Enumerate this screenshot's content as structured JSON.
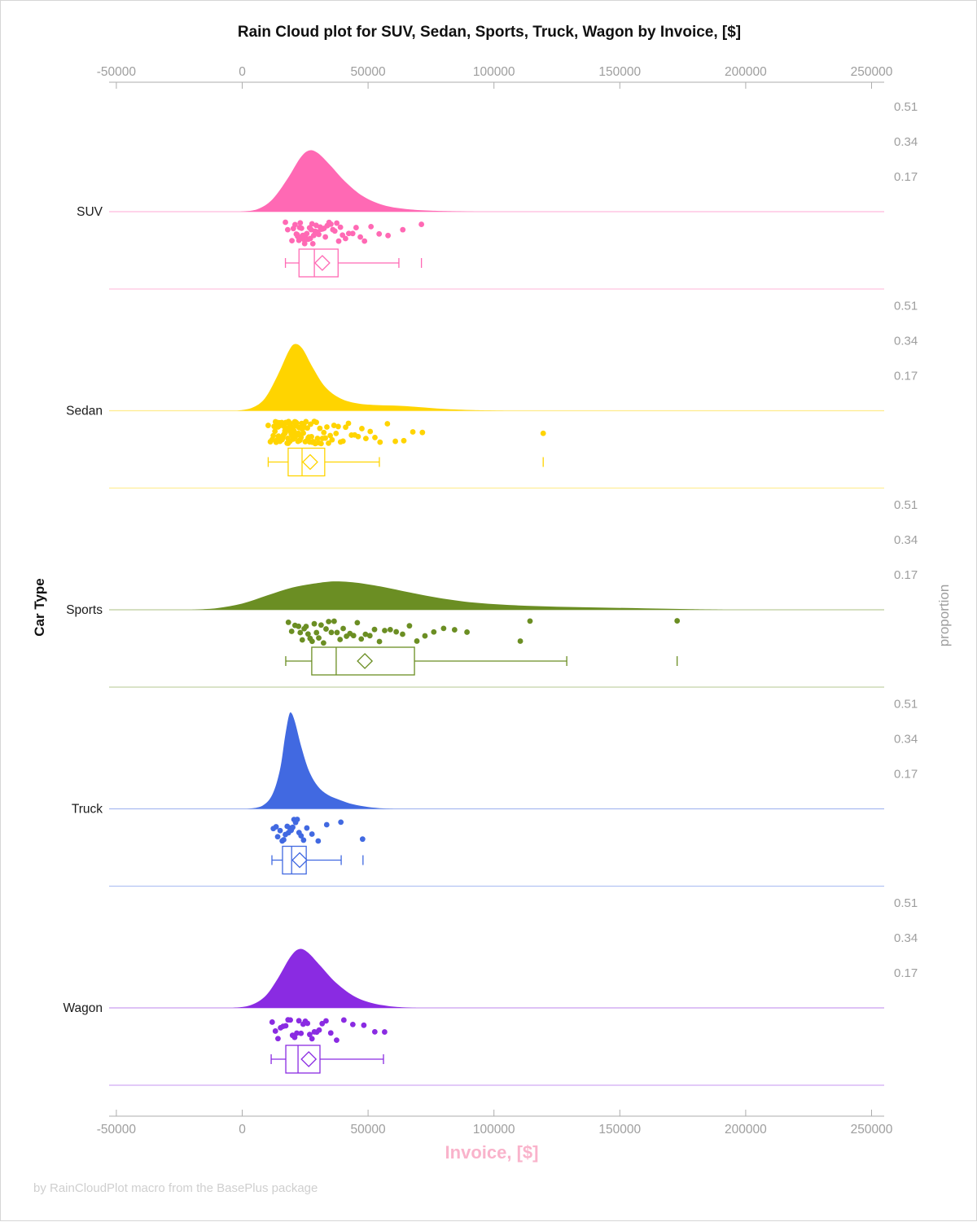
{
  "footer": "by RainCloudPlot macro from the BasePlus package",
  "chart_data": {
    "type": "raincloud (half-violin + jittered strip + box plot)",
    "title": "Rain Cloud plot for SUV, Sedan, Sports, Truck, Wagon by Invoice, [$]",
    "xlabel": "Invoice, [$]",
    "ylabel": "Car Type",
    "y2label": "proportion",
    "xlabel_color": "#f9b3cb",
    "axis_text_color": "#9e9e9e",
    "axis_line_color": "#adadad",
    "xlim": [
      -53000,
      255000
    ],
    "x_ticks": [
      {
        "value": -50000,
        "label": "-50000"
      },
      {
        "value": 0,
        "label": "0"
      },
      {
        "value": 50000,
        "label": "50000"
      },
      {
        "value": 100000,
        "label": "100000"
      },
      {
        "value": 150000,
        "label": "150000"
      },
      {
        "value": 200000,
        "label": "200000"
      },
      {
        "value": 250000,
        "label": "250000"
      }
    ],
    "proportion_ticks": [
      0.51,
      0.34,
      0.17
    ],
    "categories": [
      {
        "label": "SUV",
        "color": "#ff69b4",
        "box": {
          "low": 17165,
          "q1": 22560,
          "median": 28655,
          "q3": 38085,
          "mean": 31820,
          "high": 62235,
          "outliers": [
            71190
          ]
        },
        "density": [
          [
            -1000,
            0
          ],
          [
            6000,
            0.012
          ],
          [
            12000,
            0.06
          ],
          [
            18000,
            0.16
          ],
          [
            23000,
            0.26
          ],
          [
            26500,
            0.297
          ],
          [
            30000,
            0.285
          ],
          [
            35000,
            0.225
          ],
          [
            41000,
            0.145
          ],
          [
            48000,
            0.075
          ],
          [
            56000,
            0.032
          ],
          [
            65000,
            0.013
          ],
          [
            75000,
            0.005
          ],
          [
            88000,
            0.001
          ],
          [
            95000,
            0
          ]
        ],
        "points": [
          17163,
          18075,
          19755,
          20330,
          20990,
          21485,
          21837,
          22000,
          22508,
          22800,
          23061,
          23565,
          23892,
          24052,
          24449,
          24801,
          25216,
          25672,
          25995,
          26322,
          26755,
          27060,
          27409,
          27721,
          28055,
          28416,
          28963,
          29382,
          29875,
          30415,
          30967,
          31343,
          31912,
          32506,
          33037,
          33781,
          34506,
          35227,
          35992,
          36788,
          37560,
          38324,
          39014,
          39837,
          41045,
          42315,
          43892,
          45240,
          46912,
          48577,
          51155,
          54396,
          57925,
          63790,
          71191
        ]
      },
      {
        "label": "Sedan",
        "color": "#ffd400",
        "box": {
          "low": 10320,
          "q1": 18250,
          "median": 23770,
          "q3": 32775,
          "mean": 26990,
          "high": 54480,
          "outliers": [
            119565
          ]
        },
        "density": [
          [
            -2000,
            0
          ],
          [
            4000,
            0.015
          ],
          [
            9000,
            0.06
          ],
          [
            14000,
            0.17
          ],
          [
            18500,
            0.29
          ],
          [
            21000,
            0.324
          ],
          [
            24000,
            0.3
          ],
          [
            28000,
            0.21
          ],
          [
            33000,
            0.115
          ],
          [
            39000,
            0.06
          ],
          [
            46000,
            0.035
          ],
          [
            54000,
            0.027
          ],
          [
            62000,
            0.024
          ],
          [
            70000,
            0.018
          ],
          [
            80000,
            0.009
          ],
          [
            92000,
            0.003
          ],
          [
            105000,
            0
          ]
        ],
        "points": [
          10320,
          11185,
          11900,
          12340,
          12680,
          12995,
          13215,
          13490,
          13755,
          13980,
          14180,
          14420,
          14610,
          14805,
          14985,
          15160,
          15320,
          15510,
          15705,
          15880,
          16020,
          16185,
          16345,
          16510,
          16660,
          16805,
          16950,
          17095,
          17245,
          17390,
          17540,
          17690,
          17835,
          17980,
          18120,
          18265,
          18410,
          18555,
          18700,
          18850,
          19000,
          19150,
          19300,
          19455,
          19610,
          19765,
          19925,
          20085,
          20245,
          20410,
          20575,
          20740,
          20910,
          21080,
          21255,
          21430,
          21610,
          21790,
          21975,
          22160,
          22350,
          22545,
          22745,
          22950,
          23160,
          23375,
          23595,
          23820,
          24050,
          24290,
          24535,
          24790,
          25050,
          25320,
          25600,
          25890,
          26190,
          26500,
          26820,
          27155,
          27500,
          27860,
          28235,
          28625,
          29030,
          29455,
          29895,
          30355,
          30840,
          31345,
          31875,
          32430,
          33015,
          33630,
          34280,
          34965,
          35690,
          36460,
          37275,
          38140,
          39060,
          40040,
          41085,
          42200,
          43395,
          44675,
          46050,
          47530,
          49125,
          50850,
          52720,
          54750,
          57675,
          60830,
          64195,
          67775,
          71575,
          119565
        ]
      },
      {
        "label": "Sports",
        "color": "#6b8e23",
        "box": {
          "low": 17290,
          "q1": 27620,
          "median": 37330,
          "q3": 68420,
          "mean": 48710,
          "high": 128920,
          "outliers": [
            172770
          ]
        },
        "density": [
          [
            -20000,
            0
          ],
          [
            -10000,
            0.008
          ],
          [
            0,
            0.03
          ],
          [
            10000,
            0.07
          ],
          [
            20000,
            0.108
          ],
          [
            30000,
            0.13
          ],
          [
            37000,
            0.138
          ],
          [
            45000,
            0.132
          ],
          [
            55000,
            0.113
          ],
          [
            65000,
            0.088
          ],
          [
            78000,
            0.058
          ],
          [
            92000,
            0.035
          ],
          [
            108000,
            0.022
          ],
          [
            125000,
            0.015
          ],
          [
            142000,
            0.011
          ],
          [
            160000,
            0.007
          ],
          [
            178000,
            0.003
          ],
          [
            192000,
            0
          ]
        ],
        "points": [
          18345,
          19638,
          20975,
          22380,
          23055,
          23870,
          24615,
          25370,
          26155,
          26960,
          27780,
          28630,
          29505,
          30410,
          31340,
          32305,
          33300,
          34335,
          35405,
          36515,
          37670,
          38870,
          40120,
          41425,
          42790,
          44220,
          45720,
          47295,
          48955,
          50705,
          52555,
          54515,
          56595,
          58810,
          61175,
          63705,
          66430,
          69380,
          72590,
          76110,
          80005,
          84360,
          89290,
          110465,
          114320,
          172770
        ]
      },
      {
        "label": "Truck",
        "color": "#4169e1",
        "box": {
          "low": 11800,
          "q1": 16005,
          "median": 19635,
          "q3": 25435,
          "mean": 22815,
          "high": 39320,
          "outliers": [
            47975
          ]
        },
        "density": [
          [
            2000,
            0
          ],
          [
            8000,
            0.015
          ],
          [
            12000,
            0.07
          ],
          [
            15000,
            0.19
          ],
          [
            17000,
            0.35
          ],
          [
            18500,
            0.45
          ],
          [
            19500,
            0.466
          ],
          [
            21000,
            0.42
          ],
          [
            23500,
            0.3
          ],
          [
            26500,
            0.185
          ],
          [
            30000,
            0.11
          ],
          [
            34000,
            0.068
          ],
          [
            39000,
            0.042
          ],
          [
            44000,
            0.022
          ],
          [
            50000,
            0.009
          ],
          [
            56000,
            0.002
          ],
          [
            61000,
            0
          ]
        ],
        "points": [
          12367,
          13458,
          14087,
          15060,
          15883,
          16478,
          17152,
          17876,
          18384,
          18957,
          19463,
          20072,
          20571,
          21206,
          21858,
          22578,
          23376,
          24368,
          25672,
          27713,
          30185,
          33560,
          39188,
          47815
        ]
      },
      {
        "label": "Wagon",
        "color": "#8a2be2",
        "box": {
          "low": 11505,
          "q1": 17315,
          "median": 22175,
          "q3": 30885,
          "mean": 26415,
          "high": 56110,
          "outliers": []
        },
        "density": [
          [
            -4000,
            0
          ],
          [
            3000,
            0.012
          ],
          [
            9000,
            0.055
          ],
          [
            14000,
            0.14
          ],
          [
            19000,
            0.245
          ],
          [
            22500,
            0.285
          ],
          [
            26000,
            0.27
          ],
          [
            31000,
            0.205
          ],
          [
            37000,
            0.125
          ],
          [
            44000,
            0.06
          ],
          [
            51000,
            0.025
          ],
          [
            58000,
            0.009
          ],
          [
            65000,
            0.002
          ],
          [
            70000,
            0
          ]
        ],
        "points": [
          11905,
          13175,
          14207,
          15234,
          16265,
          17298,
          18204,
          19110,
          19987,
          20836,
          21673,
          22512,
          23354,
          24206,
          25066,
          25937,
          26822,
          27724,
          28647,
          29592,
          30563,
          31764,
          33298,
          35173,
          37495,
          40376,
          43938,
          48312,
          52666,
          56565
        ]
      }
    ]
  }
}
